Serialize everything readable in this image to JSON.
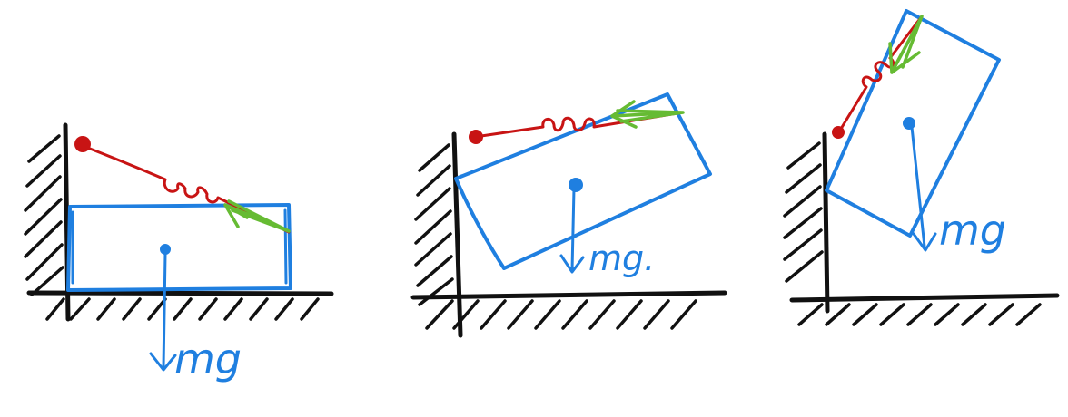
{
  "colors": {
    "ink_black": "#111111",
    "block_blue": "#1f7fe0",
    "spring_red": "#c81414",
    "force_green": "#66bb33"
  },
  "panels": [
    {
      "id": "panel-1",
      "weight_label": "mg",
      "block_state": "resting-flat"
    },
    {
      "id": "panel-2",
      "weight_label": "mg.",
      "block_state": "tilted-slightly"
    },
    {
      "id": "panel-3",
      "weight_label": "mg",
      "block_state": "tilted-steeply"
    }
  ]
}
